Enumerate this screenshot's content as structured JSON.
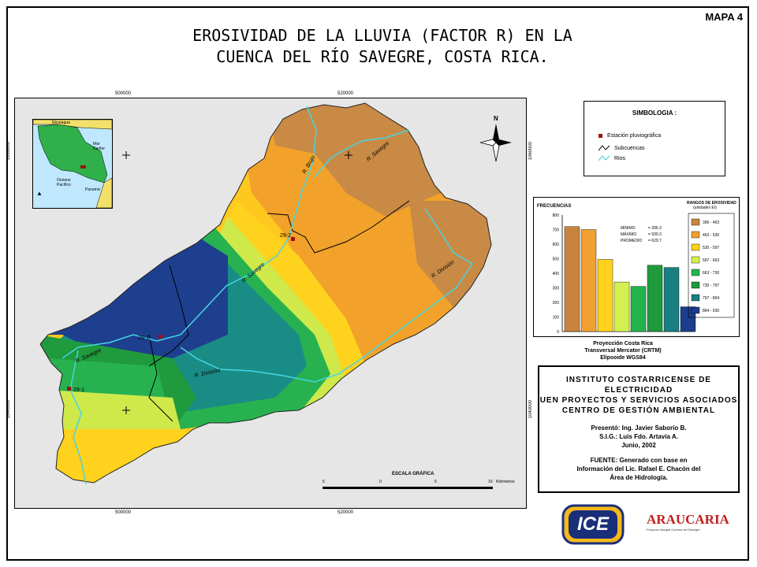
{
  "map_label": "MAPA 4",
  "title": {
    "line1": "EROSIVIDAD DE LA LLUVIA (FACTOR R) EN LA",
    "line2": "CUENCA DEL RÍO SAVEGRE, COSTA RICA."
  },
  "coords": {
    "x_left": "500000",
    "x_right": "520000",
    "y_top": "1060000",
    "y_bottom": "1040000"
  },
  "north_arrow": "N",
  "legend": {
    "title": "SIMBOLOGIA :",
    "items": [
      {
        "label": "Estación pluviográfica",
        "icon": "station-square-icon",
        "color": "#a01010"
      },
      {
        "label": "Subcuencas",
        "icon": "subbasin-line-icon",
        "color": "#000000"
      },
      {
        "label": "Rios",
        "icon": "river-line-icon",
        "color": "#33ccdd"
      }
    ]
  },
  "rivers": {
    "brujo": "R. Brujo",
    "savegre_n": "R. Savegre",
    "savegre_c": "R. Savegre",
    "savegre_w": "R. Savegre",
    "division_e": "R. División",
    "division_s": "R. División"
  },
  "stations": [
    "29-2",
    "29-1",
    "29-1"
  ],
  "inset": {
    "country_top": "Nicaragua",
    "sea_right": "Mar Caribe",
    "ocean": "Océano Pacífico",
    "country_bottom": "Panamá"
  },
  "scale": {
    "title": "ESCALA GRÁFICA",
    "ticks": [
      "5",
      "0",
      "5",
      "10"
    ],
    "unit": "Kilómetros"
  },
  "chart_data": {
    "type": "bar",
    "ylabel": "FRECUENCIAS",
    "legend_title": "RANGOS DE EROSIVIDAD",
    "legend_subtitle": "(unidades EI)",
    "ylim": [
      0,
      800
    ],
    "yticks": [
      "800",
      "700",
      "600",
      "500",
      "400",
      "300",
      "200",
      "100",
      "0"
    ],
    "categories": [
      "396 - 463",
      "463 - 530",
      "530 - 597",
      "597 - 663",
      "663 - 730",
      "730 - 797",
      "797 - 864",
      "864 - 930"
    ],
    "values": [
      720,
      700,
      495,
      340,
      310,
      455,
      440,
      170
    ],
    "colors": [
      "#c8843f",
      "#f0a030",
      "#ffd21e",
      "#d4f050",
      "#22b44c",
      "#1f9a3c",
      "#1a7f80",
      "#1c3d8c"
    ],
    "stats": {
      "min_label": "MÍNIMO",
      "min_value": "= 396.3",
      "max_label": "MÁXIMO",
      "max_value": "= 930.3",
      "avg_label": "PROMEDIO",
      "avg_value": "= 629.7"
    }
  },
  "projection": {
    "line1": "Proyección Costa Rica",
    "line2": "Transversal Mercator (CRTM)",
    "line3": "Elipsoide WGS84"
  },
  "institution": {
    "line1": "INSTITUTO COSTARRICENSE DE ELECTRICIDAD",
    "line2": "UEN PROYECTOS Y SERVICIOS ASOCIADOS",
    "line3": "CENTRO DE GESTIÓN AMBIENTAL",
    "presento": "Presentó: Ing. Javier Saborío B.",
    "sig": "S.I.G.: Luis Fdo. Artavia A.",
    "date": "Junio, 2002",
    "fuente1": "FUENTE: Generado con base en",
    "fuente2": "Información del Lic. Rafael E. Chacón del",
    "fuente3": "Área de Hidrología."
  },
  "logos": {
    "ice": "ICE",
    "aracaria": "ARAUCARIA",
    "aracaria_sub": "Proyecto Integral Cuenca del Savegre"
  }
}
